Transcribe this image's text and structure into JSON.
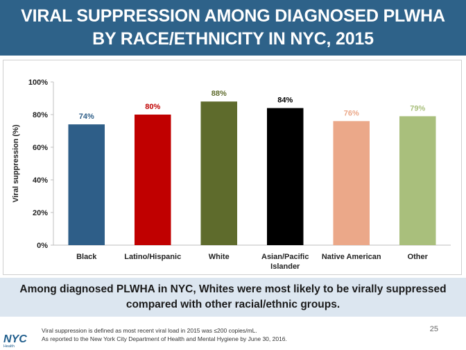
{
  "header": {
    "title": "VIRAL SUPPRESSION AMONG DIAGNOSED PLWHA BY RACE/ETHNICITY IN NYC, 2015"
  },
  "chart_data": {
    "type": "bar",
    "title": "",
    "xlabel": "",
    "ylabel": "Viral suppression (%)",
    "ylim": [
      0,
      100
    ],
    "yticks": [
      "0%",
      "20%",
      "40%",
      "60%",
      "80%",
      "100%"
    ],
    "categories": [
      "Black",
      "Latino/Hispanic",
      "White",
      "Asian/Pacific Islander",
      "Native American",
      "Other"
    ],
    "values": [
      74,
      80,
      88,
      84,
      76,
      79
    ],
    "data_labels": [
      "74%",
      "80%",
      "88%",
      "84%",
      "76%",
      "79%"
    ],
    "colors": [
      "#2e5e88",
      "#c00000",
      "#5e6b2c",
      "#000000",
      "#eba889",
      "#a9bf7c"
    ],
    "grid": false,
    "legend": "none"
  },
  "takeaway": {
    "text": "Among diagnosed PLWHA in NYC, Whites were most likely to be virally suppressed compared with other racial/ethnic groups."
  },
  "footnotes": {
    "line1": "Viral suppression is defined as most recent viral load in 2015 was ≤200 copies/mL.",
    "line2": "As reported to the New York City Department of Health and Mental Hygiene by June 30, 2016."
  },
  "page_number": "25",
  "logo": {
    "text": "NYC",
    "subtext": "Health",
    "color": "#1f5d8c"
  }
}
